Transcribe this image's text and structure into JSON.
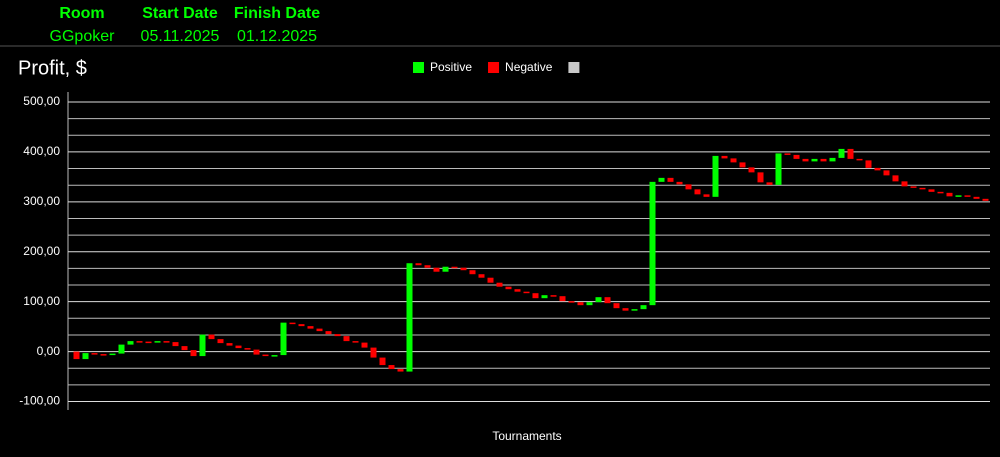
{
  "header": {
    "columns": [
      {
        "label": "Room",
        "value": "GGpoker"
      },
      {
        "label": "Start Date",
        "value": "05.11.2025"
      },
      {
        "label": "Finish Date",
        "value": "01.12.2025"
      }
    ]
  },
  "chart_data": {
    "type": "waterfall",
    "title": "Profit, $",
    "x_label": "Tournaments",
    "legend": [
      {
        "name": "Positive",
        "color": "#00ff00"
      },
      {
        "name": "Negative",
        "color": "#ff0000"
      },
      {
        "color": "#c8c8c8"
      }
    ],
    "values": [
      -15,
      12,
      -2,
      -1,
      2,
      18,
      7,
      -1,
      -1,
      2,
      -2,
      -8,
      -8,
      -12,
      43,
      -9,
      -8,
      -5,
      -5,
      -3,
      -10,
      -3,
      2,
      65,
      -3,
      -4,
      -5,
      -5,
      -6,
      -4,
      -10,
      -3,
      -10,
      -20,
      -15,
      -8,
      -5,
      217,
      -4,
      -5,
      -8,
      10,
      -2,
      -5,
      -8,
      -7,
      -10,
      -8,
      -5,
      -5,
      -3,
      -10,
      6,
      -2,
      -10,
      -2,
      -6,
      6,
      10,
      -12,
      -10,
      -5,
      3,
      8,
      247,
      8,
      -8,
      -5,
      -10,
      -10,
      -5,
      82,
      -5,
      -8,
      -10,
      -10,
      -20,
      -5,
      63,
      -3,
      -8,
      -5,
      5,
      -5,
      7,
      18,
      -20,
      -3,
      -15,
      -5,
      -10,
      -12,
      -10,
      -3,
      -3,
      -5,
      -2,
      -7,
      2,
      -3,
      -4,
      -4
    ],
    "ylim": [
      -117,
      520
    ],
    "yticks": [
      {
        "value": -100,
        "label": "-100,00"
      },
      {
        "value": 0,
        "label": "0,00"
      },
      {
        "value": 100,
        "label": "100,00"
      },
      {
        "value": 200,
        "label": "200,00"
      },
      {
        "value": 300,
        "label": "300,00"
      },
      {
        "value": 400,
        "label": "400,00"
      },
      {
        "value": 500,
        "label": "500,00"
      }
    ],
    "minor_yticks": [
      -66.67,
      -33.33,
      33.33,
      66.67,
      133.33,
      166.67,
      233.33,
      266.67,
      333.33,
      366.67,
      433.33,
      466.67
    ],
    "grid": true
  }
}
